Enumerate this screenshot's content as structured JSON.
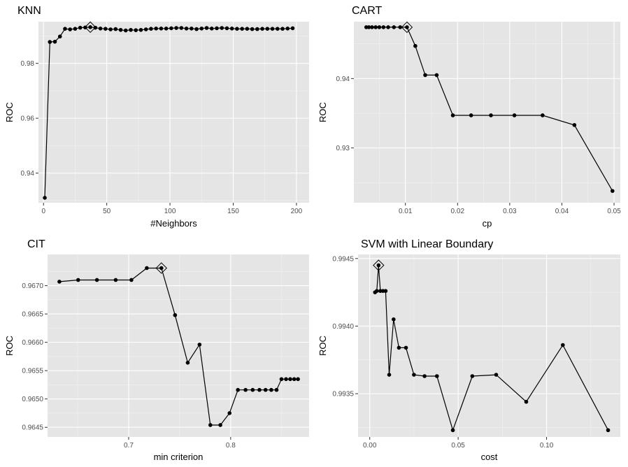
{
  "chart_data": [
    {
      "type": "line",
      "title": "KNN",
      "xlabel": "#Neighbors",
      "ylabel": "ROC",
      "xlim": [
        -4,
        210
      ],
      "ylim": [
        0.9292,
        0.9952
      ],
      "xticks": [
        0,
        50,
        100,
        150,
        200
      ],
      "xtick_labels": [
        "0",
        "50",
        "100",
        "150",
        "200"
      ],
      "yticks": [
        0.94,
        0.96,
        0.98
      ],
      "ytick_labels": [
        "0.94",
        "0.96",
        "0.98"
      ],
      "grid": true,
      "series": [
        {
          "x": [
            1,
            5,
            9,
            13,
            17,
            21,
            25,
            29,
            33,
            37,
            41,
            45,
            49,
            53,
            57,
            61,
            65,
            69,
            73,
            77,
            81,
            85,
            89,
            93,
            97,
            101,
            105,
            109,
            113,
            117,
            121,
            125,
            129,
            133,
            137,
            141,
            145,
            149,
            153,
            157,
            161,
            165,
            169,
            173,
            177,
            181,
            185,
            189,
            193,
            197
          ],
          "y": [
            0.931,
            0.9878,
            0.9879,
            0.9898,
            0.9926,
            0.9924,
            0.9926,
            0.993,
            0.9931,
            0.9932,
            0.993,
            0.9927,
            0.9926,
            0.9924,
            0.9925,
            0.9922,
            0.992,
            0.9922,
            0.9921,
            0.9922,
            0.9924,
            0.9926,
            0.9927,
            0.9927,
            0.9927,
            0.9928,
            0.9929,
            0.9929,
            0.9927,
            0.9927,
            0.9925,
            0.9927,
            0.9929,
            0.9927,
            0.9928,
            0.9929,
            0.9928,
            0.9927,
            0.9926,
            0.9926,
            0.9926,
            0.9925,
            0.9925,
            0.9926,
            0.9926,
            0.9926,
            0.9926,
            0.9926,
            0.9927,
            0.9928
          ]
        }
      ],
      "best": {
        "x": 37,
        "y": 0.9932
      }
    },
    {
      "type": "line",
      "title": "CART",
      "xlabel": "cp",
      "ylabel": "ROC",
      "xlim": [
        0.00012,
        0.0512
      ],
      "ylim": [
        0.9221,
        0.9482
      ],
      "xticks": [
        0.01,
        0.02,
        0.03,
        0.04,
        0.05
      ],
      "xtick_labels": [
        "0.01",
        "0.02",
        "0.03",
        "0.04",
        "0.05"
      ],
      "yticks": [
        0.93,
        0.94
      ],
      "ytick_labels": [
        "0.93",
        "0.94"
      ],
      "grid": true,
      "series": [
        {
          "x": [
            0.0025,
            0.003,
            0.0036,
            0.0043,
            0.005,
            0.0058,
            0.0067,
            0.0078,
            0.009,
            0.0103,
            0.0119,
            0.0138,
            0.016,
            0.0191,
            0.0226,
            0.0264,
            0.0309,
            0.0363,
            0.0424,
            0.0497
          ],
          "y": [
            0.9474,
            0.9474,
            0.9474,
            0.9474,
            0.9474,
            0.9474,
            0.9474,
            0.9474,
            0.9474,
            0.9474,
            0.9447,
            0.9405,
            0.9405,
            0.9347,
            0.9347,
            0.9347,
            0.9347,
            0.9347,
            0.9333,
            0.9238
          ]
        }
      ],
      "best": {
        "x": 0.0103,
        "y": 0.9474
      }
    },
    {
      "type": "line",
      "title": "CIT",
      "xlabel": "min criterion",
      "ylabel": "ROC",
      "xlim": [
        0.6205,
        0.8769
      ],
      "ylim": [
        0.96433,
        0.96755
      ],
      "xticks": [
        0.7,
        0.8
      ],
      "xtick_labels": [
        "0.7",
        "0.8"
      ],
      "yticks": [
        0.9645,
        0.965,
        0.9655,
        0.966,
        0.9665,
        0.967
      ],
      "ytick_labels": [
        "0.9645",
        "0.9650",
        "0.9655",
        "0.9660",
        "0.9665",
        "0.9670"
      ],
      "grid": true,
      "series": [
        {
          "x": [
            0.6321,
            0.6505,
            0.6689,
            0.6873,
            0.7027,
            0.7178,
            0.7321,
            0.7455,
            0.7579,
            0.7695,
            0.7801,
            0.7899,
            0.7989,
            0.8071,
            0.8146,
            0.8216,
            0.8282,
            0.8342,
            0.8398,
            0.845,
            0.8498,
            0.8543,
            0.8584,
            0.8623,
            0.866
          ],
          "y": [
            0.96707,
            0.9671,
            0.9671,
            0.9671,
            0.9671,
            0.96731,
            0.96731,
            0.96648,
            0.96564,
            0.96596,
            0.96454,
            0.96454,
            0.96475,
            0.96516,
            0.96516,
            0.96516,
            0.96516,
            0.96516,
            0.96516,
            0.96516,
            0.96535,
            0.96535,
            0.96535,
            0.96535,
            0.96535
          ]
        }
      ],
      "best": {
        "x": 0.7321,
        "y": 0.96731
      }
    },
    {
      "type": "line",
      "title": "SVM with Linear Boundary",
      "xlabel": "cost",
      "ylabel": "ROC",
      "xlim": [
        -0.0066,
        0.1417
      ],
      "ylim": [
        0.99318,
        0.99453
      ],
      "xticks": [
        0.0,
        0.05,
        0.1
      ],
      "xtick_labels": [
        "0.00",
        "0.05",
        "0.10"
      ],
      "yticks": [
        0.9935,
        0.994,
        0.9945
      ],
      "ytick_labels": [
        "0.9935",
        "0.9940",
        "0.9945"
      ],
      "grid": true,
      "series": [
        {
          "x": [
            0.003,
            0.004,
            0.005,
            0.006,
            0.0075,
            0.009,
            0.011,
            0.0135,
            0.0165,
            0.0205,
            0.025,
            0.031,
            0.038,
            0.047,
            0.058,
            0.0715,
            0.0885,
            0.1092,
            0.1348
          ],
          "y": [
            0.99425,
            0.99426,
            0.99445,
            0.99426,
            0.99426,
            0.99426,
            0.99364,
            0.99405,
            0.99384,
            0.99384,
            0.99364,
            0.99363,
            0.99363,
            0.99323,
            0.99363,
            0.99364,
            0.99344,
            0.99386,
            0.99323
          ]
        }
      ],
      "best": {
        "x": 0.005,
        "y": 0.99445
      }
    }
  ]
}
